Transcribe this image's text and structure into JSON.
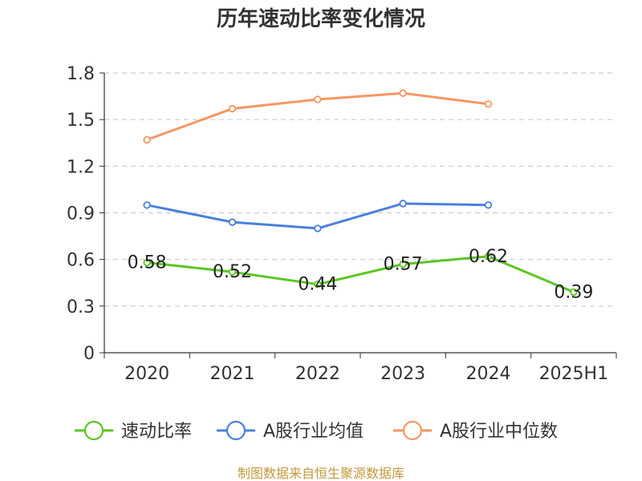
{
  "chart_data": {
    "type": "line",
    "title": "历年速动比率变化情况",
    "categories": [
      "2020",
      "2021",
      "2022",
      "2023",
      "2024",
      "2025H1"
    ],
    "ylim": [
      0,
      1.8
    ],
    "yticks": [
      "0",
      "0.3",
      "0.6",
      "0.9",
      "1.2",
      "1.5",
      "1.8"
    ],
    "grid": true,
    "legend_position": "bottom",
    "series": [
      {
        "name": "速动比率",
        "color": "#5cc522",
        "values": [
          0.58,
          0.52,
          0.44,
          0.57,
          0.62,
          0.39
        ],
        "labels": [
          "0.58",
          "0.52",
          "0.44",
          "0.57",
          "0.62",
          "0.39"
        ]
      },
      {
        "name": "A股行业均值",
        "color": "#4a80dc",
        "values": [
          0.95,
          0.84,
          0.8,
          0.96,
          0.95,
          null
        ]
      },
      {
        "name": "A股行业中位数",
        "color": "#f69662",
        "values": [
          1.37,
          1.57,
          1.63,
          1.67,
          1.6,
          null
        ]
      }
    ],
    "source": "制图数据来自恒生聚源数据库"
  }
}
